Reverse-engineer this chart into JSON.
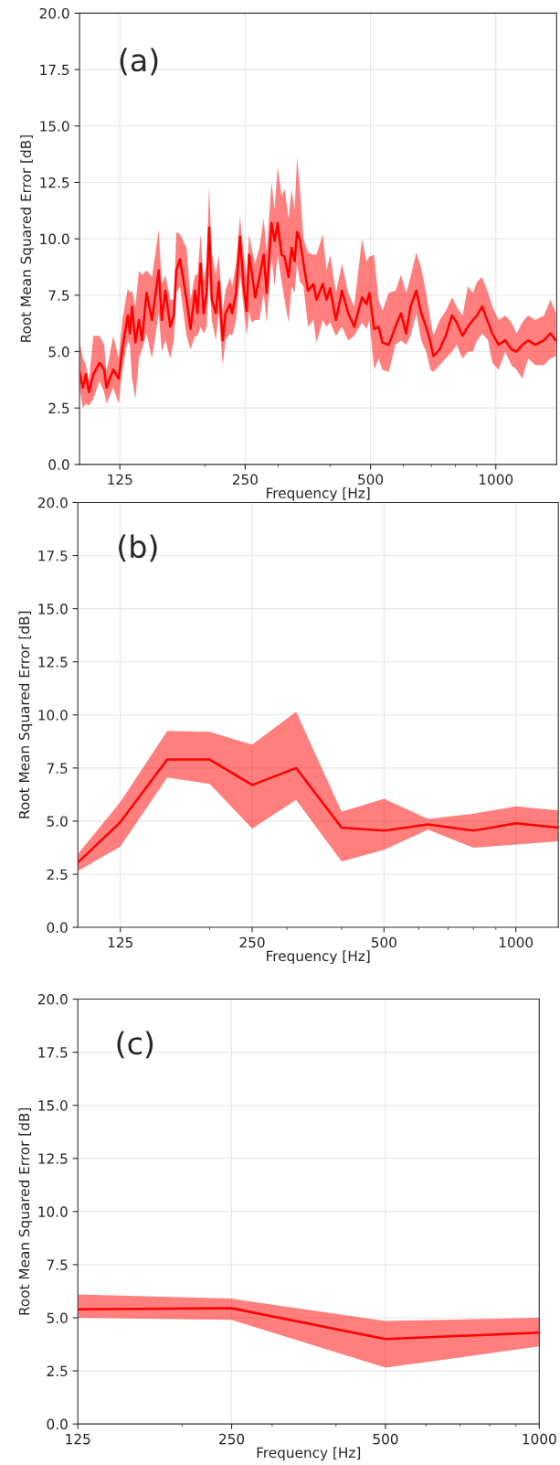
{
  "chart_data": [
    {
      "type": "line",
      "xlabel": "Frequency [Hz]",
      "ylabel": "Root Mean Squared Error [dB]",
      "annotations": [
        "(a)"
      ],
      "log": "x",
      "grid": true,
      "xlim": [
        100,
        1400
      ],
      "ylim": [
        0,
        20
      ],
      "xticks": [
        125,
        250,
        500,
        1000
      ],
      "yticks": [
        {
          "value": 0,
          "label": "0.0"
        },
        {
          "value": 2.5,
          "label": "2.5"
        },
        {
          "value": 5,
          "label": "5.0"
        },
        {
          "value": 7.5,
          "label": "7.5"
        },
        {
          "value": 10,
          "label": "10.0"
        },
        {
          "value": 12.5,
          "label": "12.5"
        },
        {
          "value": 15,
          "label": "15.0"
        },
        {
          "value": 17.5,
          "label": "17.5"
        },
        {
          "value": 20,
          "label": "20.0"
        }
      ],
      "x": [
        100,
        101.9,
        103.6,
        105.3,
        108,
        111.7,
        114.6,
        116.1,
        120.5,
        124.2,
        126.7,
        130.6,
        132.1,
        133.7,
        136.2,
        138.9,
        141.3,
        144.9,
        149.3,
        155,
        157.6,
        160.8,
        165.2,
        168.5,
        170.8,
        174.3,
        180.8,
        184.8,
        189.5,
        192.1,
        195.4,
        198.7,
        202,
        204.8,
        207.9,
        212.5,
        216,
        220.8,
        224.2,
        229.9,
        232.6,
        237.7,
        243,
        247.9,
        252.1,
        255.5,
        259,
        264.2,
        270.5,
        277,
        281.6,
        289.3,
        294.2,
        299.2,
        305.8,
        311,
        317.8,
        323.2,
        328.7,
        333.1,
        338.2,
        345.1,
        353.9,
        364.7,
        370.9,
        384,
        392,
        400,
        413,
        427,
        442,
        457,
        477,
        489,
        497,
        510,
        523,
        534,
        553,
        574,
        592,
        609,
        624,
        644,
        662,
        680,
        697,
        708,
        733,
        758,
        785,
        805,
        832,
        857,
        881,
        902,
        927,
        958,
        981,
        1016,
        1053,
        1090,
        1122,
        1158,
        1196,
        1244,
        1305,
        1353,
        1394
      ],
      "series": [
        {
          "color": "#ff0000",
          "values": [
            4.1,
            3.4,
            4.0,
            3.2,
            4.0,
            4.5,
            4.2,
            3.4,
            4.2,
            3.8,
            5.1,
            6.6,
            5.8,
            7.0,
            5.4,
            6.4,
            5.5,
            7.6,
            6.4,
            8.6,
            6.4,
            7.7,
            6.1,
            6.6,
            8.6,
            9.1,
            7.3,
            6.0,
            7.7,
            6.7,
            8.9,
            6.7,
            7.6,
            10.5,
            7.3,
            6.7,
            8.1,
            5.5,
            6.7,
            7.1,
            6.7,
            7.6,
            10.1,
            7.9,
            6.8,
            9.3,
            8.6,
            7.4,
            8.3,
            9.3,
            7.6,
            10.7,
            9.9,
            10.7,
            9.3,
            9.2,
            8.3,
            9.6,
            9.0,
            10.3,
            10.0,
            8.9,
            7.7,
            8.0,
            7.3,
            8.0,
            7.3,
            7.8,
            6.4,
            7.7,
            6.7,
            6.1,
            7.4,
            7.1,
            7.6,
            6.0,
            6.1,
            5.4,
            5.3,
            6.1,
            6.7,
            5.8,
            7.0,
            7.7,
            6.7,
            6.1,
            5.4,
            4.8,
            5.1,
            5.7,
            6.6,
            6.3,
            5.7,
            6.1,
            6.4,
            6.6,
            7.0,
            6.3,
            5.8,
            5.3,
            5.5,
            5.1,
            5.0,
            5.3,
            5.5,
            5.3,
            5.5,
            5.8,
            5.5
          ],
          "lower": [
            3.4,
            2.5,
            2.7,
            2.6,
            2.9,
            3.7,
            3.2,
            2.7,
            3.4,
            2.7,
            4.2,
            5.5,
            5.3,
            3.8,
            2.9,
            4.7,
            5.1,
            5.8,
            4.7,
            6.7,
            5.0,
            5.5,
            4.7,
            5.5,
            7.6,
            7.9,
            5.7,
            5.1,
            5.7,
            5.7,
            6.1,
            5.8,
            6.1,
            8.4,
            6.4,
            5.5,
            6.7,
            4.4,
            5.5,
            5.8,
            5.7,
            6.4,
            8.4,
            7.0,
            5.7,
            6.8,
            6.3,
            6.4,
            6.4,
            7.6,
            6.3,
            9.2,
            7.9,
            9.3,
            8.1,
            7.3,
            6.3,
            7.9,
            7.6,
            8.9,
            8.1,
            7.9,
            6.1,
            6.4,
            5.4,
            6.4,
            6.1,
            6.3,
            5.7,
            6.1,
            5.5,
            5.7,
            6.3,
            6.0,
            6.4,
            4.2,
            4.7,
            4.2,
            4.1,
            5.3,
            5.5,
            5.3,
            5.7,
            6.7,
            5.5,
            5.0,
            4.2,
            4.1,
            4.4,
            4.7,
            5.0,
            5.3,
            4.7,
            5.0,
            5.0,
            5.5,
            5.8,
            5.5,
            4.5,
            4.2,
            5.0,
            4.4,
            4.2,
            3.8,
            4.7,
            4.4,
            4.4,
            4.7,
            4.8
          ],
          "upper": [
            5.5,
            4.7,
            4.4,
            3.7,
            5.7,
            5.7,
            5.3,
            4.1,
            5.7,
            4.7,
            6.4,
            7.8,
            7.6,
            7.7,
            7.0,
            8.6,
            8.4,
            8.6,
            8.3,
            10.4,
            8.0,
            8.4,
            7.3,
            7.3,
            10.3,
            10.2,
            9.6,
            7.3,
            8.4,
            8.4,
            10.2,
            8.1,
            9.0,
            12.3,
            9.4,
            8.4,
            9.3,
            6.8,
            7.7,
            8.3,
            7.9,
            8.9,
            11.0,
            9.3,
            8.3,
            10.2,
            9.6,
            8.9,
            9.6,
            10.9,
            9.4,
            12.5,
            11.3,
            13.2,
            11.9,
            12.2,
            10.9,
            12.2,
            11.3,
            13.6,
            12.3,
            10.0,
            9.4,
            9.3,
            9.3,
            10.2,
            8.6,
            9.3,
            7.6,
            8.9,
            7.6,
            7.0,
            10.0,
            9.0,
            9.2,
            9.3,
            7.3,
            6.8,
            7.6,
            7.7,
            8.4,
            7.6,
            8.3,
            9.4,
            8.7,
            7.6,
            6.4,
            5.7,
            6.4,
            6.8,
            7.4,
            7.0,
            6.6,
            7.9,
            7.6,
            8.1,
            8.3,
            7.6,
            7.0,
            6.4,
            6.6,
            6.3,
            5.8,
            6.3,
            6.6,
            6.4,
            6.6,
            7.3,
            6.7
          ]
        }
      ]
    },
    {
      "type": "line",
      "xlabel": "Frequency [Hz]",
      "ylabel": "Root Mean Squared Error [dB]",
      "annotations": [
        "(b)"
      ],
      "log": "x",
      "grid": true,
      "xlim": [
        100,
        1250
      ],
      "ylim": [
        0,
        20
      ],
      "xticks": [
        125,
        250,
        500,
        1000
      ],
      "yticks": [
        {
          "value": 0,
          "label": "0.0"
        },
        {
          "value": 2.5,
          "label": "2.5"
        },
        {
          "value": 5,
          "label": "5.0"
        },
        {
          "value": 7.5,
          "label": "7.5"
        },
        {
          "value": 10,
          "label": "10.0"
        },
        {
          "value": 12.5,
          "label": "12.5"
        },
        {
          "value": 15,
          "label": "15.0"
        },
        {
          "value": 17.5,
          "label": "17.5"
        },
        {
          "value": 20,
          "label": "20.0"
        }
      ],
      "x": [
        100,
        125,
        160,
        200,
        250,
        315,
        400,
        500,
        630,
        800,
        1000,
        1250
      ],
      "series": [
        {
          "color": "#ff0000",
          "values": [
            3.05,
            4.95,
            7.9,
            7.9,
            6.7,
            7.5,
            4.7,
            4.55,
            4.85,
            4.55,
            4.9,
            4.7
          ],
          "lower": [
            2.65,
            3.8,
            7.05,
            6.75,
            4.65,
            6.0,
            3.1,
            3.65,
            4.6,
            3.75,
            3.9,
            4.05
          ],
          "upper": [
            3.45,
            5.9,
            9.25,
            9.2,
            8.6,
            10.15,
            5.45,
            6.05,
            5.1,
            5.35,
            5.7,
            5.5
          ]
        }
      ]
    },
    {
      "type": "line",
      "xlabel": "Frequency [Hz]",
      "ylabel": "Root Mean Squared Error [dB]",
      "annotations": [
        "(c)"
      ],
      "log": "x",
      "grid": true,
      "xlim": [
        125,
        1000
      ],
      "ylim": [
        0,
        20
      ],
      "xticks": [
        125,
        250,
        500,
        1000
      ],
      "yticks": [
        {
          "value": 0,
          "label": "0.0"
        },
        {
          "value": 2.5,
          "label": "2.5"
        },
        {
          "value": 5,
          "label": "5.0"
        },
        {
          "value": 7.5,
          "label": "7.5"
        },
        {
          "value": 10,
          "label": "10.0"
        },
        {
          "value": 12.5,
          "label": "12.5"
        },
        {
          "value": 15,
          "label": "15.0"
        },
        {
          "value": 17.5,
          "label": "17.5"
        },
        {
          "value": 20,
          "label": "20.0"
        }
      ],
      "x": [
        125,
        250,
        500,
        1000
      ],
      "series": [
        {
          "color": "#ff0000",
          "values": [
            5.4,
            5.45,
            4.0,
            4.3
          ],
          "lower": [
            5.0,
            4.9,
            2.65,
            3.65
          ],
          "upper": [
            6.1,
            5.9,
            4.85,
            5.0
          ]
        }
      ]
    }
  ]
}
